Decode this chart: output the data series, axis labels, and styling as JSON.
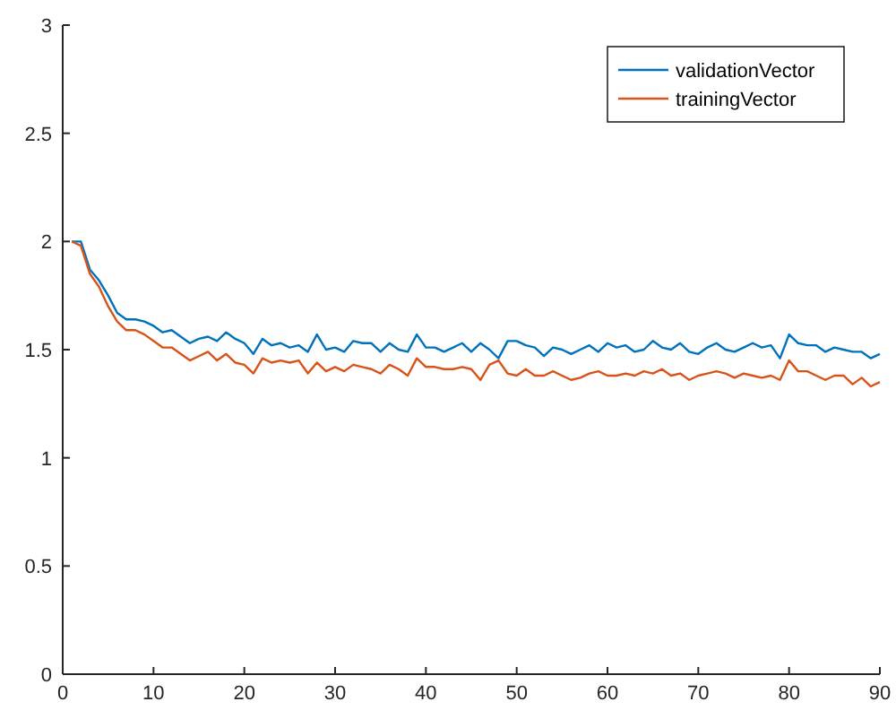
{
  "chart_data": {
    "type": "line",
    "x": [
      1,
      2,
      3,
      4,
      5,
      6,
      7,
      8,
      9,
      10,
      11,
      12,
      13,
      14,
      15,
      16,
      17,
      18,
      19,
      20,
      21,
      22,
      23,
      24,
      25,
      26,
      27,
      28,
      29,
      30,
      31,
      32,
      33,
      34,
      35,
      36,
      37,
      38,
      39,
      40,
      41,
      42,
      43,
      44,
      45,
      46,
      47,
      48,
      49,
      50,
      51,
      52,
      53,
      54,
      55,
      56,
      57,
      58,
      59,
      60,
      61,
      62,
      63,
      64,
      65,
      66,
      67,
      68,
      69,
      70,
      71,
      72,
      73,
      74,
      75,
      76,
      77,
      78,
      79,
      80,
      81,
      82,
      83,
      84,
      85,
      86,
      87,
      88,
      89,
      90
    ],
    "series": [
      {
        "name": "validationVector",
        "color": "#0072bd",
        "values": [
          2.0,
          2.0,
          1.87,
          1.82,
          1.75,
          1.67,
          1.64,
          1.64,
          1.63,
          1.61,
          1.58,
          1.59,
          1.56,
          1.53,
          1.55,
          1.56,
          1.54,
          1.58,
          1.55,
          1.53,
          1.48,
          1.55,
          1.52,
          1.53,
          1.51,
          1.52,
          1.49,
          1.57,
          1.5,
          1.51,
          1.49,
          1.54,
          1.53,
          1.53,
          1.49,
          1.53,
          1.5,
          1.49,
          1.57,
          1.51,
          1.51,
          1.49,
          1.51,
          1.53,
          1.49,
          1.53,
          1.5,
          1.46,
          1.54,
          1.54,
          1.52,
          1.51,
          1.47,
          1.51,
          1.5,
          1.48,
          1.5,
          1.52,
          1.49,
          1.53,
          1.51,
          1.52,
          1.49,
          1.5,
          1.54,
          1.51,
          1.5,
          1.53,
          1.49,
          1.48,
          1.51,
          1.53,
          1.5,
          1.49,
          1.51,
          1.53,
          1.51,
          1.52,
          1.46,
          1.57,
          1.53,
          1.52,
          1.52,
          1.49,
          1.51,
          1.5,
          1.49,
          1.49,
          1.46,
          1.48
        ]
      },
      {
        "name": "trainingVector",
        "color": "#d95319",
        "values": [
          2.0,
          1.98,
          1.85,
          1.79,
          1.7,
          1.63,
          1.59,
          1.59,
          1.57,
          1.54,
          1.51,
          1.51,
          1.48,
          1.45,
          1.47,
          1.49,
          1.45,
          1.48,
          1.44,
          1.43,
          1.39,
          1.46,
          1.44,
          1.45,
          1.44,
          1.45,
          1.39,
          1.44,
          1.4,
          1.42,
          1.4,
          1.43,
          1.42,
          1.41,
          1.39,
          1.43,
          1.41,
          1.38,
          1.46,
          1.42,
          1.42,
          1.41,
          1.41,
          1.42,
          1.41,
          1.36,
          1.43,
          1.45,
          1.39,
          1.38,
          1.41,
          1.38,
          1.38,
          1.4,
          1.38,
          1.36,
          1.37,
          1.39,
          1.4,
          1.38,
          1.38,
          1.39,
          1.38,
          1.4,
          1.39,
          1.41,
          1.38,
          1.39,
          1.36,
          1.38,
          1.39,
          1.4,
          1.39,
          1.37,
          1.39,
          1.38,
          1.37,
          1.38,
          1.36,
          1.45,
          1.4,
          1.4,
          1.38,
          1.36,
          1.38,
          1.38,
          1.34,
          1.37,
          1.33,
          1.35
        ]
      }
    ],
    "xlim": [
      0,
      90
    ],
    "xticks": [
      0,
      10,
      20,
      30,
      40,
      50,
      60,
      70,
      80,
      90
    ],
    "ylim": [
      0,
      3
    ],
    "yticks": [
      0,
      0.5,
      1,
      1.5,
      2,
      2.5,
      3
    ],
    "legend": "top right",
    "grid": false,
    "line_style": "solid",
    "marker": "none"
  }
}
